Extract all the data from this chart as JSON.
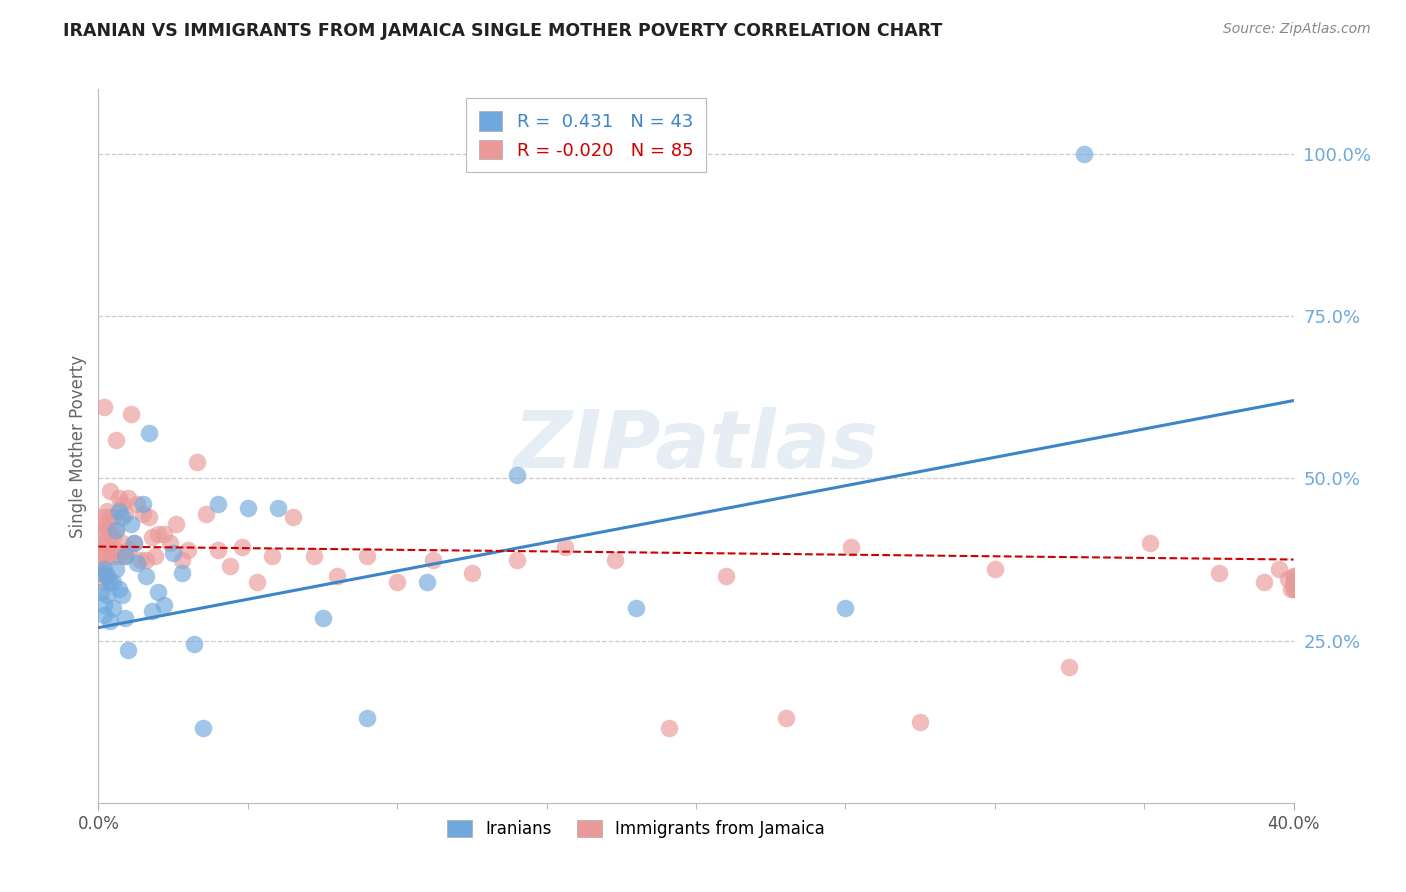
{
  "title": "IRANIAN VS IMMIGRANTS FROM JAMAICA SINGLE MOTHER POVERTY CORRELATION CHART",
  "source": "Source: ZipAtlas.com",
  "ylabel": "Single Mother Poverty",
  "ytick_labels": [
    "100.0%",
    "75.0%",
    "50.0%",
    "25.0%"
  ],
  "ytick_positions": [
    1.0,
    0.75,
    0.5,
    0.25
  ],
  "xmin": 0.0,
  "xmax": 0.4,
  "ymin": 0.0,
  "ymax": 1.1,
  "legend_line1": "R =  0.431   N = 43",
  "legend_line2": "R = -0.020   N = 85",
  "color_iranian": "#6fa8dc",
  "color_jamaica": "#ea9999",
  "color_iranian_line": "#3d85c8",
  "color_jamaica_line": "#cc0000",
  "color_right_axis": "#6fa8dc",
  "background_color": "#ffffff",
  "watermark": "ZIPatlas",
  "iranians_x": [
    0.001,
    0.001,
    0.002,
    0.002,
    0.002,
    0.003,
    0.003,
    0.004,
    0.004,
    0.005,
    0.005,
    0.006,
    0.006,
    0.007,
    0.007,
    0.008,
    0.008,
    0.009,
    0.009,
    0.01,
    0.011,
    0.012,
    0.013,
    0.015,
    0.016,
    0.017,
    0.018,
    0.02,
    0.022,
    0.025,
    0.028,
    0.032,
    0.035,
    0.04,
    0.05,
    0.06,
    0.075,
    0.09,
    0.11,
    0.14,
    0.18,
    0.25,
    0.33
  ],
  "iranians_y": [
    0.355,
    0.325,
    0.36,
    0.29,
    0.305,
    0.35,
    0.32,
    0.34,
    0.28,
    0.34,
    0.3,
    0.36,
    0.42,
    0.45,
    0.33,
    0.44,
    0.32,
    0.38,
    0.285,
    0.235,
    0.43,
    0.4,
    0.37,
    0.46,
    0.35,
    0.57,
    0.295,
    0.325,
    0.305,
    0.385,
    0.355,
    0.245,
    0.115,
    0.46,
    0.455,
    0.455,
    0.285,
    0.13,
    0.34,
    0.505,
    0.3,
    0.3,
    1.0
  ],
  "jamaica_x": [
    0.001,
    0.001,
    0.001,
    0.001,
    0.001,
    0.002,
    0.002,
    0.002,
    0.002,
    0.002,
    0.002,
    0.003,
    0.003,
    0.003,
    0.003,
    0.003,
    0.004,
    0.004,
    0.004,
    0.004,
    0.005,
    0.005,
    0.005,
    0.006,
    0.006,
    0.006,
    0.007,
    0.007,
    0.008,
    0.008,
    0.009,
    0.009,
    0.01,
    0.01,
    0.011,
    0.012,
    0.013,
    0.014,
    0.015,
    0.016,
    0.017,
    0.018,
    0.019,
    0.02,
    0.022,
    0.024,
    0.026,
    0.028,
    0.03,
    0.033,
    0.036,
    0.04,
    0.044,
    0.048,
    0.053,
    0.058,
    0.065,
    0.072,
    0.08,
    0.09,
    0.1,
    0.112,
    0.125,
    0.14,
    0.156,
    0.173,
    0.191,
    0.21,
    0.23,
    0.252,
    0.275,
    0.3,
    0.325,
    0.352,
    0.375,
    0.39,
    0.395,
    0.398,
    0.399,
    0.4,
    0.4,
    0.4,
    0.4,
    0.4,
    0.4
  ],
  "jamaica_y": [
    0.43,
    0.4,
    0.38,
    0.36,
    0.34,
    0.44,
    0.42,
    0.4,
    0.38,
    0.355,
    0.61,
    0.45,
    0.42,
    0.4,
    0.38,
    0.35,
    0.48,
    0.44,
    0.415,
    0.385,
    0.44,
    0.41,
    0.38,
    0.56,
    0.42,
    0.39,
    0.47,
    0.38,
    0.46,
    0.4,
    0.445,
    0.38,
    0.47,
    0.39,
    0.6,
    0.4,
    0.46,
    0.375,
    0.445,
    0.375,
    0.44,
    0.41,
    0.38,
    0.415,
    0.415,
    0.4,
    0.43,
    0.375,
    0.39,
    0.525,
    0.445,
    0.39,
    0.365,
    0.395,
    0.34,
    0.38,
    0.44,
    0.38,
    0.35,
    0.38,
    0.34,
    0.375,
    0.355,
    0.375,
    0.395,
    0.375,
    0.115,
    0.35,
    0.13,
    0.395,
    0.125,
    0.36,
    0.21,
    0.4,
    0.355,
    0.34,
    0.36,
    0.345,
    0.33,
    0.35,
    0.34,
    0.33,
    0.35,
    0.34,
    0.33
  ]
}
